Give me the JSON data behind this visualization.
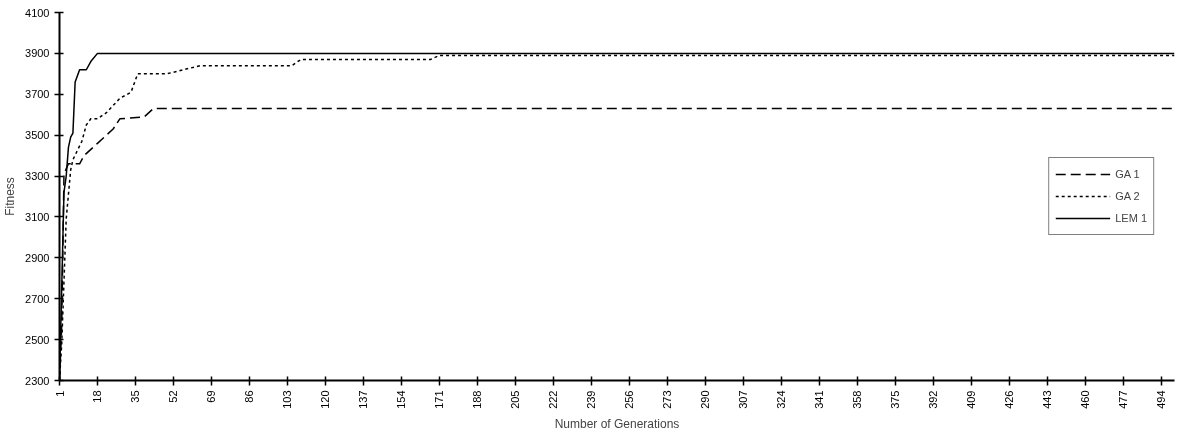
{
  "chart_data": {
    "type": "line",
    "xlabel": "Number of Generations",
    "ylabel": "Fitness",
    "xlim": [
      1,
      500
    ],
    "xticks": [
      1,
      18,
      35,
      52,
      69,
      86,
      103,
      120,
      137,
      154,
      171,
      188,
      205,
      222,
      239,
      256,
      273,
      290,
      307,
      324,
      341,
      358,
      375,
      392,
      409,
      426,
      443,
      460,
      477,
      494
    ],
    "ylim": [
      2300,
      4100
    ],
    "yticks": [
      2300,
      2500,
      2700,
      2900,
      3100,
      3300,
      3500,
      3700,
      3900,
      4100
    ],
    "grid": false,
    "legend": "right",
    "marker": "none",
    "series": [
      {
        "name": "GA 1",
        "color": "#000000",
        "line_style": "dashed",
        "x": [
          1,
          2,
          3,
          5,
          10,
          12,
          16,
          18,
          22,
          25,
          28,
          39,
          43,
          500
        ],
        "values": [
          2300,
          2570,
          3310,
          3360,
          3360,
          3400,
          3440,
          3460,
          3500,
          3530,
          3580,
          3590,
          3630,
          3630
        ]
      },
      {
        "name": "GA 2",
        "color": "#000000",
        "line_style": "dotted",
        "x": [
          1,
          2,
          4,
          6,
          7,
          11,
          13,
          15,
          18,
          22,
          28,
          33,
          36,
          49,
          64,
          105,
          109,
          167,
          171,
          500
        ],
        "values": [
          2300,
          2480,
          3090,
          3330,
          3380,
          3470,
          3550,
          3580,
          3580,
          3610,
          3680,
          3710,
          3800,
          3800,
          3840,
          3840,
          3870,
          3870,
          3890,
          3890
        ]
      },
      {
        "name": "LEM 1",
        "color": "#000000",
        "line_style": "solid",
        "x": [
          1,
          3,
          4,
          5,
          6,
          7,
          8,
          10,
          13,
          15,
          18,
          500
        ],
        "values": [
          2300,
          3220,
          3300,
          3440,
          3490,
          3510,
          3760,
          3820,
          3820,
          3860,
          3900,
          3900
        ]
      }
    ]
  }
}
